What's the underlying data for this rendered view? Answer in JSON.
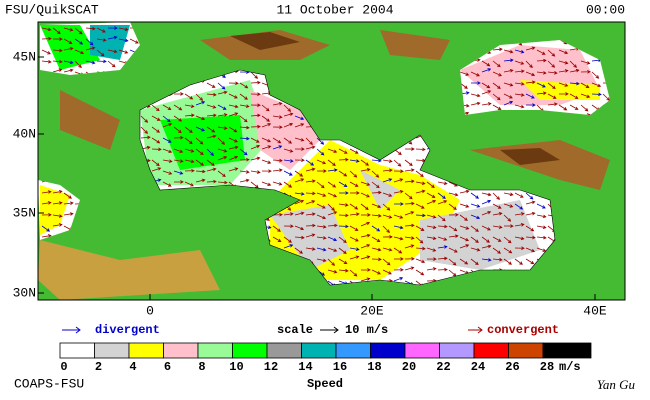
{
  "header": {
    "title": "FSU/QuikSCAT",
    "date": "11 October 2004",
    "time": "00:00"
  },
  "map": {
    "lat_labels": [
      "45N",
      "40N",
      "35N",
      "30N"
    ],
    "lon_labels": [
      "0",
      "20E",
      "40E"
    ]
  },
  "legend": {
    "divergent": "divergent",
    "scale_label": "scale",
    "scale_value": "10 m/s",
    "convergent": "convergent"
  },
  "colorbar": {
    "ticks": [
      0,
      2,
      4,
      6,
      8,
      10,
      12,
      14,
      16,
      18,
      20,
      22,
      24,
      26,
      28
    ],
    "unit": "m/s",
    "label": "Speed",
    "colors": [
      "#ffffff",
      "#d3d3d3",
      "#ffff00",
      "#ffc0cb",
      "#98fb98",
      "#00ff00",
      "#999999",
      "#00b2b2",
      "#3399ff",
      "#0000cc",
      "#ff66ff",
      "#b399ff",
      "#ff0000",
      "#cc4400",
      "#000000"
    ]
  },
  "footer": {
    "left": "COAPS-FSU",
    "signature": "Yan Gu"
  }
}
